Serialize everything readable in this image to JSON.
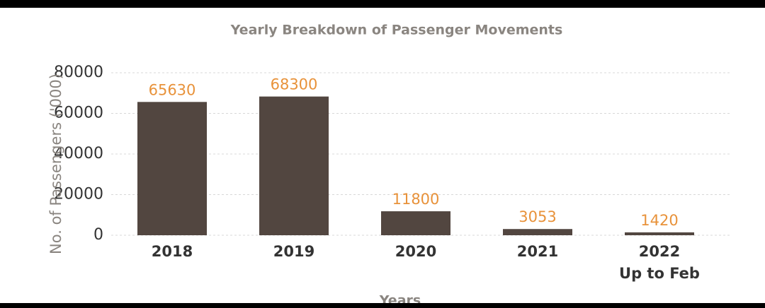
{
  "chart_data": {
    "type": "bar",
    "title": "Yearly Breakdown of Passenger Movements",
    "x_label": "Years",
    "y_label": "No. of Passengers ('000)",
    "categories": [
      "2018",
      "2019",
      "2020",
      "2021",
      "2022\nUp to Feb"
    ],
    "values": [
      65630,
      68300,
      11800,
      3053,
      1420
    ],
    "color": "#524640",
    "value_label_color": "#e8923a",
    "ylim": [
      0,
      80000
    ],
    "yticks": [
      0,
      20000,
      40000,
      60000,
      80000
    ],
    "grid": true
  }
}
